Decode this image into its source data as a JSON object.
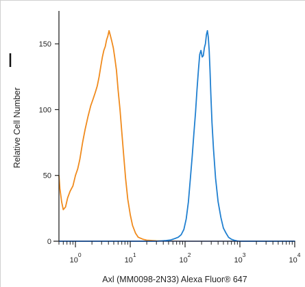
{
  "chart_data": {
    "type": "line",
    "title": "",
    "xlabel": "Axl (MM0098-2N33) Alexa Fluor® 647",
    "ylabel": "Relative Cell Number",
    "x_scale": "log",
    "xlim": [
      0.5,
      10000
    ],
    "ylim": [
      0,
      175
    ],
    "x_ticks": [
      {
        "value": 1,
        "base": "10",
        "exp": "0"
      },
      {
        "value": 10,
        "base": "10",
        "exp": "1"
      },
      {
        "value": 100,
        "base": "10",
        "exp": "2"
      },
      {
        "value": 1000,
        "base": "10",
        "exp": "3"
      },
      {
        "value": 10000,
        "base": "10",
        "exp": "4"
      }
    ],
    "y_ticks": [
      {
        "value": 0,
        "label": "0"
      },
      {
        "value": 50,
        "label": "50"
      },
      {
        "value": 100,
        "label": "100"
      },
      {
        "value": 150,
        "label": "150"
      }
    ],
    "grid": false,
    "legend": "none",
    "series": [
      {
        "color": "#f08a1c",
        "x": [
          0.5,
          0.52,
          0.56,
          0.6,
          0.66,
          0.72,
          0.8,
          0.9,
          1.0,
          1.1,
          1.2,
          1.35,
          1.5,
          1.7,
          1.9,
          2.1,
          2.3,
          2.5,
          2.7,
          2.9,
          3.1,
          3.3,
          3.5,
          3.7,
          3.9,
          4.1,
          4.3,
          4.6,
          4.9,
          5.2,
          5.6,
          6.0,
          6.5,
          7.0,
          7.6,
          8.2,
          9.0,
          10,
          11,
          12.5,
          14,
          17,
          20,
          25,
          30,
          40,
          60,
          100,
          300,
          1000,
          10000
        ],
        "y": [
          50,
          40,
          30,
          24,
          26,
          33,
          38,
          42,
          50,
          55,
          62,
          75,
          85,
          95,
          103,
          108,
          113,
          118,
          125,
          133,
          140,
          145,
          148,
          153,
          156,
          160,
          157,
          152,
          147,
          140,
          130,
          115,
          100,
          83,
          65,
          48,
          32,
          20,
          12,
          6,
          3,
          1.5,
          0.8,
          0.5,
          0.3,
          0.2,
          0.1,
          0,
          0,
          0,
          0
        ]
      },
      {
        "color": "#1f7fd0",
        "x": [
          0.5,
          10,
          30,
          45,
          55,
          65,
          75,
          85,
          95,
          105,
          115,
          125,
          135,
          145,
          155,
          165,
          175,
          185,
          195,
          205,
          215,
          225,
          235,
          245,
          255,
          265,
          275,
          285,
          295,
          310,
          330,
          360,
          400,
          450,
          500,
          560,
          620,
          700,
          800,
          900,
          1000,
          1500,
          10000
        ],
        "y": [
          0,
          0,
          0,
          0.5,
          1,
          2,
          3,
          5,
          9,
          17,
          30,
          48,
          65,
          82,
          98,
          115,
          130,
          142,
          145,
          140,
          141,
          147,
          150,
          157,
          160,
          155,
          145,
          130,
          112,
          90,
          70,
          48,
          30,
          18,
          10,
          6,
          3,
          1.5,
          0.6,
          0.2,
          0,
          0,
          0
        ]
      }
    ]
  }
}
